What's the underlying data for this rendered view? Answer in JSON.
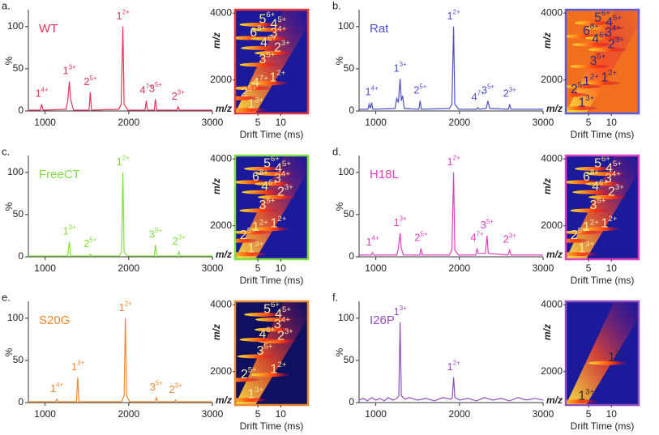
{
  "chart_data": [
    {
      "type": "line",
      "panel_label": "a.",
      "title": "WT",
      "color": "#e8335a",
      "ylabel": "%",
      "x": [
        800,
        940,
        960,
        975,
        1250,
        1270,
        1290,
        1305,
        1320,
        1340,
        1525,
        1540,
        1555,
        1880,
        1910,
        1930,
        1945,
        1990,
        2195,
        2210,
        2225,
        2305,
        2320,
        2335,
        2575,
        2590,
        2605,
        3000
      ],
      "values": [
        1,
        1,
        8,
        1,
        2,
        12,
        35,
        14,
        8,
        1,
        1,
        22,
        1,
        2,
        8,
        100,
        8,
        1,
        1,
        12,
        1,
        1,
        14,
        1,
        1,
        5,
        1,
        1
      ],
      "xlim": [
        800,
        3000
      ],
      "xticks": [
        1000,
        2000,
        3000
      ],
      "ylim": [
        0,
        120
      ],
      "yticks": [
        0,
        50,
        100
      ],
      "peak_labels": [
        {
          "text": "1",
          "charge": "4+",
          "x": 960
        },
        {
          "text": "1",
          "charge": "3+",
          "x": 1290
        },
        {
          "text": "2",
          "charge": "5+",
          "x": 1540
        },
        {
          "text": "1",
          "charge": "2+",
          "x": 1930
        },
        {
          "text": "4",
          "charge": "7+",
          "x": 2210
        },
        {
          "text": "3",
          "charge": "5+",
          "x": 2320
        },
        {
          "text": "2",
          "charge": "3+",
          "x": 2590
        }
      ]
    },
    {
      "type": "heatmap",
      "color": "#e8383d",
      "background": "#1a1a9a",
      "label_color": "#f8e8a0",
      "xlabel": "Drift Time (ms)",
      "ylabel": "m/z",
      "xlim": [
        0,
        16
      ],
      "xticks": [
        5,
        10
      ],
      "ylim": [
        1000,
        4100
      ],
      "yticks": [
        2000,
        4000
      ],
      "annotations": [
        {
          "text": "5",
          "charge": "6+",
          "x": 7,
          "y": 3800
        },
        {
          "text": "4",
          "charge": "5+",
          "x": 9.5,
          "y": 3650
        },
        {
          "text": "6",
          "charge": "8+",
          "x": 5,
          "y": 3400
        },
        {
          "text": "3",
          "charge": "4+",
          "x": 9.5,
          "y": 3380
        },
        {
          "text": "4",
          "charge": "6+",
          "x": 7.3,
          "y": 3100
        },
        {
          "text": "2",
          "charge": "3+",
          "x": 10.3,
          "y": 2950
        },
        {
          "text": "3",
          "charge": "5+",
          "x": 7,
          "y": 2600
        },
        {
          "text": "1",
          "charge": "2+",
          "x": 9.3,
          "y": 2050
        },
        {
          "text": "4",
          "charge": "7+",
          "x": 5.5,
          "y": 1900
        },
        {
          "text": "2",
          "charge": "5+",
          "x": 3,
          "y": 1600
        },
        {
          "text": "1",
          "charge": "3+",
          "x": 4.5,
          "y": 1250
        }
      ]
    },
    {
      "type": "line",
      "panel_label": "b.",
      "title": "Rat",
      "color": "#5050c8",
      "ylabel": "%",
      "x": [
        800,
        905,
        920,
        935,
        950,
        965,
        1230,
        1250,
        1270,
        1290,
        1305,
        1320,
        1340,
        1515,
        1530,
        1545,
        1880,
        1910,
        1930,
        1945,
        1990,
        2205,
        2220,
        2235,
        2320,
        2340,
        2360,
        2585,
        2600,
        2615,
        3000
      ],
      "values": [
        2,
        2,
        8,
        3,
        10,
        2,
        3,
        15,
        10,
        38,
        12,
        18,
        3,
        2,
        12,
        2,
        3,
        8,
        100,
        8,
        2,
        2,
        4,
        2,
        3,
        12,
        3,
        2,
        8,
        2,
        2
      ],
      "xlim": [
        800,
        3000
      ],
      "xticks": [
        1000,
        2000,
        3000
      ],
      "ylim": [
        0,
        120
      ],
      "yticks": [
        0,
        50,
        100
      ],
      "peak_labels": [
        {
          "text": "1",
          "charge": "4+",
          "x": 950
        },
        {
          "text": "1",
          "charge": "3+",
          "x": 1290
        },
        {
          "text": "2",
          "charge": "5+",
          "x": 1530
        },
        {
          "text": "1",
          "charge": "2+",
          "x": 1930
        },
        {
          "text": "4",
          "charge": "7+",
          "x": 2220
        },
        {
          "text": "3",
          "charge": "5+",
          "x": 2340
        },
        {
          "text": "2",
          "charge": "3+",
          "x": 2600
        }
      ]
    },
    {
      "type": "heatmap",
      "color": "#5b5bd6",
      "background": "#f07020",
      "label_color": "#2a2a8a",
      "xlabel": "Drift Time (ms)",
      "ylabel": "m/z",
      "xlim": [
        0,
        16
      ],
      "xticks": [
        5,
        10
      ],
      "ylim": [
        1000,
        4100
      ],
      "yticks": [
        2000,
        4000
      ],
      "annotations": [
        {
          "text": "5",
          "charge": "6+",
          "x": 8,
          "y": 3850
        },
        {
          "text": "4",
          "charge": "5+",
          "x": 10.5,
          "y": 3700
        },
        {
          "text": "6",
          "charge": "8+",
          "x": 5.5,
          "y": 3450
        },
        {
          "text": "4",
          "charge": "6+",
          "x": 7.5,
          "y": 3200
        },
        {
          "text": "3",
          "charge": "4+",
          "x": 10.3,
          "y": 3400
        },
        {
          "text": "2",
          "charge": "3+",
          "x": 11,
          "y": 3050
        },
        {
          "text": "3",
          "charge": "5+",
          "x": 7,
          "y": 2550
        },
        {
          "text": "1",
          "charge": "2+",
          "x": 9.5,
          "y": 2050
        },
        {
          "text": "1",
          "charge": "2+",
          "x": 5.5,
          "y": 1950
        },
        {
          "text": "2",
          "charge": "5+",
          "x": 2.8,
          "y": 1700
        },
        {
          "text": "1",
          "charge": "3+",
          "x": 4.5,
          "y": 1300
        }
      ]
    },
    {
      "type": "line",
      "panel_label": "c.",
      "title": "FreeCT",
      "color": "#80e040",
      "ylabel": "%",
      "x": [
        800,
        1270,
        1290,
        1305,
        1525,
        1540,
        1555,
        1890,
        1915,
        1930,
        1945,
        1980,
        2305,
        2320,
        2335,
        2585,
        2600,
        2615,
        3000
      ],
      "values": [
        1,
        1,
        18,
        1,
        1,
        3,
        1,
        1,
        6,
        100,
        6,
        1,
        1,
        14,
        1,
        1,
        6,
        1,
        1
      ],
      "xlim": [
        800,
        3000
      ],
      "xticks": [
        1000,
        2000,
        3000
      ],
      "ylim": [
        0,
        120
      ],
      "yticks": [
        0,
        50,
        100
      ],
      "peak_labels": [
        {
          "text": "1",
          "charge": "3+",
          "x": 1290
        },
        {
          "text": "2",
          "charge": "5+",
          "x": 1540
        },
        {
          "text": "1",
          "charge": "2+",
          "x": 1930
        },
        {
          "text": "3",
          "charge": "5+",
          "x": 2320
        },
        {
          "text": "2",
          "charge": "3+",
          "x": 2600
        }
      ]
    },
    {
      "type": "heatmap",
      "color": "#7fe040",
      "background": "#1a1a9a",
      "label_color": "#f8e8a0",
      "xlabel": "Drift Time (ms)",
      "ylabel": "m/z",
      "xlim": [
        0,
        16
      ],
      "xticks": [
        5,
        10
      ],
      "ylim": [
        1000,
        4100
      ],
      "yticks": [
        2000,
        4000
      ],
      "annotations": [
        {
          "text": "5",
          "charge": "6+",
          "x": 8,
          "y": 3850
        },
        {
          "text": "4",
          "charge": "5+",
          "x": 10.5,
          "y": 3700
        },
        {
          "text": "6",
          "charge": "8+",
          "x": 5.5,
          "y": 3450
        },
        {
          "text": "3",
          "charge": "4+",
          "x": 10.3,
          "y": 3400
        },
        {
          "text": "4",
          "charge": "6+",
          "x": 7.5,
          "y": 3150
        },
        {
          "text": "2",
          "charge": "3+",
          "x": 11,
          "y": 3000
        },
        {
          "text": "3",
          "charge": "5+",
          "x": 7,
          "y": 2600
        },
        {
          "text": "1",
          "charge": "2+",
          "x": 9.5,
          "y": 2050
        },
        {
          "text": "1",
          "charge": "2+",
          "x": 5.5,
          "y": 1950
        },
        {
          "text": "2",
          "charge": "5+",
          "x": 2.8,
          "y": 1700
        },
        {
          "text": "1",
          "charge": "3+",
          "x": 4.5,
          "y": 1300
        }
      ]
    },
    {
      "type": "line",
      "panel_label": "d.",
      "title": "H18L",
      "color": "#e040c0",
      "ylabel": "%",
      "x": [
        800,
        945,
        960,
        975,
        1250,
        1270,
        1290,
        1305,
        1330,
        1525,
        1540,
        1555,
        1880,
        1910,
        1930,
        1945,
        1990,
        2195,
        2210,
        2225,
        2310,
        2330,
        2345,
        2580,
        2600,
        2615,
        3000
      ],
      "values": [
        2,
        2,
        5,
        2,
        2,
        10,
        28,
        10,
        2,
        2,
        10,
        2,
        2,
        8,
        100,
        8,
        2,
        2,
        10,
        4,
        4,
        25,
        4,
        2,
        8,
        2,
        2
      ],
      "xlim": [
        800,
        3000
      ],
      "xticks": [
        1000,
        2000,
        3000
      ],
      "ylim": [
        0,
        120
      ],
      "yticks": [
        0,
        50,
        100
      ],
      "peak_labels": [
        {
          "text": "1",
          "charge": "4+",
          "x": 960
        },
        {
          "text": "1",
          "charge": "3+",
          "x": 1290
        },
        {
          "text": "2",
          "charge": "5+",
          "x": 1540
        },
        {
          "text": "1",
          "charge": "2+",
          "x": 1930
        },
        {
          "text": "4",
          "charge": "7+",
          "x": 2210
        },
        {
          "text": "3",
          "charge": "5+",
          "x": 2330
        },
        {
          "text": "2",
          "charge": "3+",
          "x": 2600
        }
      ]
    },
    {
      "type": "heatmap",
      "color": "#e040c0",
      "background": "#1a1a9a",
      "label_color": "#f8e8a0",
      "xlabel": "Drift Time (ms)",
      "ylabel": "m/z",
      "xlim": [
        0,
        16
      ],
      "xticks": [
        5,
        10
      ],
      "ylim": [
        1000,
        4100
      ],
      "yticks": [
        2000,
        4000
      ],
      "annotations": [
        {
          "text": "5",
          "charge": "6+",
          "x": 8,
          "y": 3850
        },
        {
          "text": "4",
          "charge": "5+",
          "x": 10.5,
          "y": 3700
        },
        {
          "text": "6",
          "charge": "8+",
          "x": 5.5,
          "y": 3450
        },
        {
          "text": "3",
          "charge": "4+",
          "x": 10.3,
          "y": 3400
        },
        {
          "text": "4",
          "charge": "6+",
          "x": 7.5,
          "y": 3150
        },
        {
          "text": "2",
          "charge": "3+",
          "x": 11,
          "y": 3000
        },
        {
          "text": "3",
          "charge": "5+",
          "x": 7,
          "y": 2600
        },
        {
          "text": "1",
          "charge": "2+",
          "x": 9.5,
          "y": 2050
        },
        {
          "text": "1",
          "charge": "2+",
          "x": 5.5,
          "y": 1950
        },
        {
          "text": "2",
          "charge": "5+",
          "x": 2.8,
          "y": 1700
        },
        {
          "text": "1",
          "charge": "3+",
          "x": 4.5,
          "y": 1300
        }
      ]
    },
    {
      "type": "line",
      "panel_label": "e.",
      "title": "S20G",
      "color": "#f08a30",
      "ylabel": "%",
      "x": [
        800,
        1125,
        1140,
        1155,
        1375,
        1390,
        1405,
        1910,
        1945,
        1960,
        1975,
        2010,
        2315,
        2330,
        2345,
        2545,
        2560,
        2575,
        3000
      ],
      "values": [
        1,
        1,
        4,
        1,
        1,
        30,
        1,
        1,
        8,
        100,
        8,
        1,
        1,
        6,
        1,
        1,
        3,
        1,
        1
      ],
      "xlim": [
        800,
        3000
      ],
      "xticks": [
        1000,
        2000,
        3000
      ],
      "ylim": [
        0,
        120
      ],
      "yticks": [
        0,
        50,
        100
      ],
      "peak_labels": [
        {
          "text": "1",
          "charge": "4+",
          "x": 1140
        },
        {
          "text": "1",
          "charge": "3+",
          "x": 1390
        },
        {
          "text": "1",
          "charge": "2+",
          "x": 1960
        },
        {
          "text": "3",
          "charge": "5+",
          "x": 2330
        },
        {
          "text": "2",
          "charge": "3+",
          "x": 2560
        }
      ]
    },
    {
      "type": "heatmap",
      "color": "#f08a30",
      "background": "#101060",
      "label_color": "#f8e8a0",
      "xlabel": "Drift Time (ms)",
      "ylabel": "m/z",
      "xlim": [
        0,
        16
      ],
      "xticks": [
        5,
        10
      ],
      "ylim": [
        1000,
        4100
      ],
      "yticks": [
        2000,
        4000
      ],
      "annotations": [
        {
          "text": "5",
          "charge": "6+",
          "x": 8,
          "y": 3850
        },
        {
          "text": "4",
          "charge": "5+",
          "x": 10.5,
          "y": 3700
        },
        {
          "text": "3",
          "charge": "4+",
          "x": 10.3,
          "y": 3400
        },
        {
          "text": "2",
          "charge": "3+",
          "x": 11,
          "y": 3050
        },
        {
          "text": "4",
          "charge": "6+",
          "x": 7,
          "y": 3100
        },
        {
          "text": "3",
          "charge": "5+",
          "x": 6.5,
          "y": 2600
        },
        {
          "text": "1",
          "charge": "2+",
          "x": 9.5,
          "y": 2050
        },
        {
          "text": "2",
          "charge": "5+",
          "x": 3,
          "y": 1900
        },
        {
          "text": "1",
          "charge": "3+",
          "x": 4.5,
          "y": 1300
        }
      ]
    },
    {
      "type": "line",
      "panel_label": "f.",
      "title": "I26P",
      "color": "#9050c0",
      "ylabel": "%",
      "x": [
        800,
        850,
        900,
        950,
        1000,
        1050,
        1100,
        1150,
        1200,
        1250,
        1275,
        1290,
        1305,
        1350,
        1400,
        1500,
        1600,
        1700,
        1800,
        1900,
        1915,
        1930,
        1945,
        2000,
        2100,
        2200,
        2300,
        2400,
        2500,
        2600,
        2700,
        2800,
        2900,
        3000
      ],
      "values": [
        3,
        5,
        2,
        6,
        3,
        5,
        2,
        6,
        3,
        5,
        8,
        95,
        8,
        4,
        6,
        3,
        5,
        2,
        6,
        4,
        6,
        30,
        6,
        3,
        5,
        2,
        6,
        3,
        5,
        2,
        6,
        3,
        5,
        3
      ],
      "xlim": [
        800,
        3000
      ],
      "xticks": [
        1000,
        2000,
        3000
      ],
      "ylim": [
        0,
        120
      ],
      "yticks": [
        0,
        50,
        100
      ],
      "peak_labels": [
        {
          "text": "1",
          "charge": "3+",
          "x": 1290
        },
        {
          "text": "1",
          "charge": "2+",
          "x": 1930
        }
      ]
    },
    {
      "type": "heatmap",
      "color": "#9050c0",
      "background": "#1a1a9a",
      "label_color": "#2a2a30",
      "xlabel": "Drift Time (ms)",
      "ylabel": "m/z",
      "xlim": [
        0,
        16
      ],
      "xticks": [
        5,
        10
      ],
      "ylim": [
        1000,
        4100
      ],
      "yticks": [
        2000,
        4000
      ],
      "annotations": [
        {
          "text": "1",
          "charge": "2+",
          "x": 11,
          "y": 2400
        },
        {
          "text": "1",
          "charge": "3+",
          "x": 4.5,
          "y": 1250
        }
      ]
    }
  ]
}
